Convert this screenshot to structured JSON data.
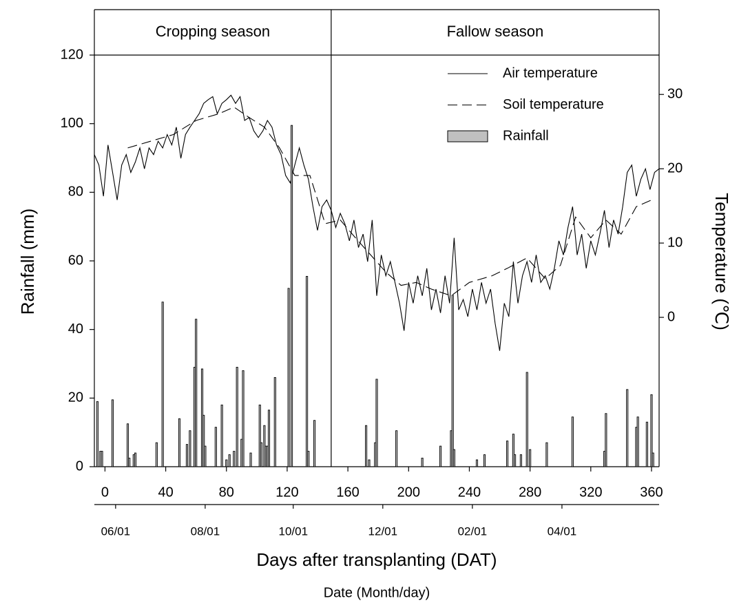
{
  "chart_data": {
    "type": "combo",
    "xlabel": "Days after transplanting (DAT)",
    "ylabel": "Rainfall (mm)",
    "y2label": "Temperature (℃)",
    "date_label": "Date (Month/day)",
    "xlim": [
      -7,
      365
    ],
    "xticks": [
      0,
      40,
      80,
      120,
      160,
      200,
      240,
      280,
      320,
      360
    ],
    "ylim": [
      0,
      120
    ],
    "yticks": [
      0,
      20,
      40,
      60,
      80,
      100,
      120
    ],
    "y2lim": [
      -20.1,
      35.3
    ],
    "y2ticks": [
      0,
      10,
      20,
      30
    ],
    "date_ticks": [
      {
        "value": 7,
        "label": "06/01"
      },
      {
        "value": 66,
        "label": "08/01"
      },
      {
        "value": 124,
        "label": "10/01"
      },
      {
        "value": 183,
        "label": "12/01"
      },
      {
        "value": 242,
        "label": "02/01"
      },
      {
        "value": 301,
        "label": "04/01"
      }
    ],
    "seasons": [
      {
        "label": "Cropping season",
        "start": -7,
        "end": 149
      },
      {
        "label": "Fallow season",
        "start": 149,
        "end": 365
      }
    ],
    "legend": "upper right",
    "series": [
      {
        "name": "Air temperature",
        "type": "line",
        "dash": "solid",
        "axis": "y2",
        "color": "#000000",
        "x": [
          -7,
          -4,
          -1,
          2,
          5,
          8,
          11,
          14,
          17,
          20,
          23,
          26,
          29,
          32,
          35,
          38,
          41,
          44,
          47,
          50,
          53,
          56,
          59,
          62,
          65,
          68,
          71,
          74,
          77,
          80,
          83,
          86,
          89,
          92,
          95,
          98,
          101,
          104,
          107,
          110,
          113,
          116,
          119,
          122,
          125,
          128,
          131,
          134,
          137,
          140,
          143,
          146,
          149,
          152,
          155,
          158,
          161,
          164,
          167,
          170,
          173,
          176,
          179,
          182,
          185,
          188,
          191,
          194,
          197,
          200,
          203,
          206,
          209,
          212,
          215,
          218,
          221,
          224,
          227,
          230,
          233,
          236,
          239,
          242,
          245,
          248,
          251,
          254,
          257,
          260,
          263,
          266,
          269,
          272,
          275,
          278,
          281,
          284,
          287,
          290,
          293,
          296,
          299,
          302,
          305,
          308,
          311,
          314,
          317,
          320,
          323,
          326,
          329,
          332,
          335,
          338,
          341,
          344,
          347,
          350,
          353,
          356,
          359,
          362,
          365
        ],
        "values": [
          21.9,
          20.5,
          16.3,
          23.2,
          19.5,
          15.8,
          20.5,
          21.9,
          19.5,
          20.9,
          22.8,
          20,
          22.8,
          21.9,
          23.7,
          22.8,
          24.6,
          23.2,
          25.6,
          21.4,
          24.6,
          25.6,
          26.5,
          27.4,
          28.8,
          29.3,
          29.7,
          27.4,
          28.8,
          29.3,
          29.9,
          28.8,
          29.7,
          26.5,
          26.9,
          25.1,
          24.2,
          25.1,
          26.5,
          25.6,
          23.2,
          21.9,
          19.1,
          18.1,
          20.5,
          22.8,
          20.5,
          18.6,
          14.9,
          11.7,
          14.9,
          15.8,
          14.4,
          12.1,
          14,
          12.6,
          10.3,
          13.1,
          9.4,
          11.2,
          7.5,
          13.1,
          2.9,
          8.4,
          5.6,
          7.5,
          4.7,
          1.9,
          -1.8,
          4.7,
          1.9,
          5.6,
          2.9,
          6.6,
          1,
          3.8,
          0.6,
          5.6,
          1.9,
          10.7,
          1,
          2.4,
          0.1,
          3.8,
          1,
          4.7,
          1.9,
          3.8,
          -0.8,
          -4.5,
          1.9,
          0.1,
          7.5,
          1.9,
          5.6,
          7.5,
          4.7,
          8.4,
          4.7,
          5.6,
          3.8,
          6.6,
          10.3,
          8.4,
          12.1,
          14.9,
          8.4,
          11.2,
          6.6,
          10.3,
          8.4,
          11.2,
          14.4,
          9.4,
          13.1,
          11.2,
          14.9,
          19.5,
          20.5,
          16.3,
          18.6,
          20,
          17.2,
          19.5,
          20
        ]
      },
      {
        "name": "Soil temperature",
        "type": "line",
        "dash": "dashed",
        "axis": "y2",
        "color": "#000000",
        "x": [
          15,
          30,
          45,
          60,
          75,
          85,
          95,
          105,
          115,
          125,
          135,
          145,
          155,
          165,
          175,
          185,
          195,
          205,
          215,
          228,
          240,
          255,
          265,
          278,
          290,
          300,
          310,
          320,
          330,
          340,
          350,
          360
        ],
        "values": [
          22.8,
          23.7,
          24.6,
          26.5,
          27.4,
          28.3,
          26.9,
          25.6,
          22.8,
          19.1,
          19.1,
          12.6,
          13.1,
          10.7,
          8.4,
          6.1,
          4.3,
          4.7,
          3.8,
          2.9,
          4.7,
          5.6,
          6.6,
          8,
          5.2,
          7,
          13.5,
          10.7,
          13.1,
          11.2,
          14.9,
          15.8
        ]
      },
      {
        "name": "Rainfall",
        "type": "bar",
        "color": "#c0c0c0",
        "x": [
          -5,
          -3,
          -2,
          5,
          15,
          16,
          19,
          20,
          34,
          38,
          49,
          54,
          56,
          59,
          60,
          64,
          65,
          66,
          73,
          77,
          80,
          82,
          85,
          87,
          90,
          91,
          96,
          102,
          103,
          105,
          106,
          107,
          108,
          112,
          121,
          123,
          133,
          134,
          138,
          172,
          174,
          178,
          179,
          192,
          209,
          221,
          228,
          229,
          230,
          245,
          250,
          265,
          269,
          270,
          274,
          278,
          280,
          291,
          308,
          329,
          330,
          344,
          350,
          351,
          357,
          360,
          361
        ],
        "values": [
          19,
          4.5,
          4.5,
          19.5,
          12.5,
          2.5,
          3.5,
          4,
          7,
          48,
          14,
          6.5,
          10.5,
          29,
          43,
          28.5,
          15,
          6,
          11.5,
          18,
          2,
          3.5,
          4.5,
          29,
          8,
          28,
          4,
          18,
          7,
          12,
          6,
          6,
          16.5,
          26,
          52,
          99.5,
          55.5,
          4.5,
          13.5,
          12,
          2,
          7,
          25.5,
          10.5,
          2.5,
          6,
          10.5,
          50,
          5,
          2,
          3.5,
          7.5,
          9.5,
          3.5,
          3.5,
          27.5,
          5,
          7,
          14.5,
          4.5,
          15.5,
          22.5,
          11.5,
          14.5,
          13,
          21,
          4
        ]
      }
    ]
  }
}
